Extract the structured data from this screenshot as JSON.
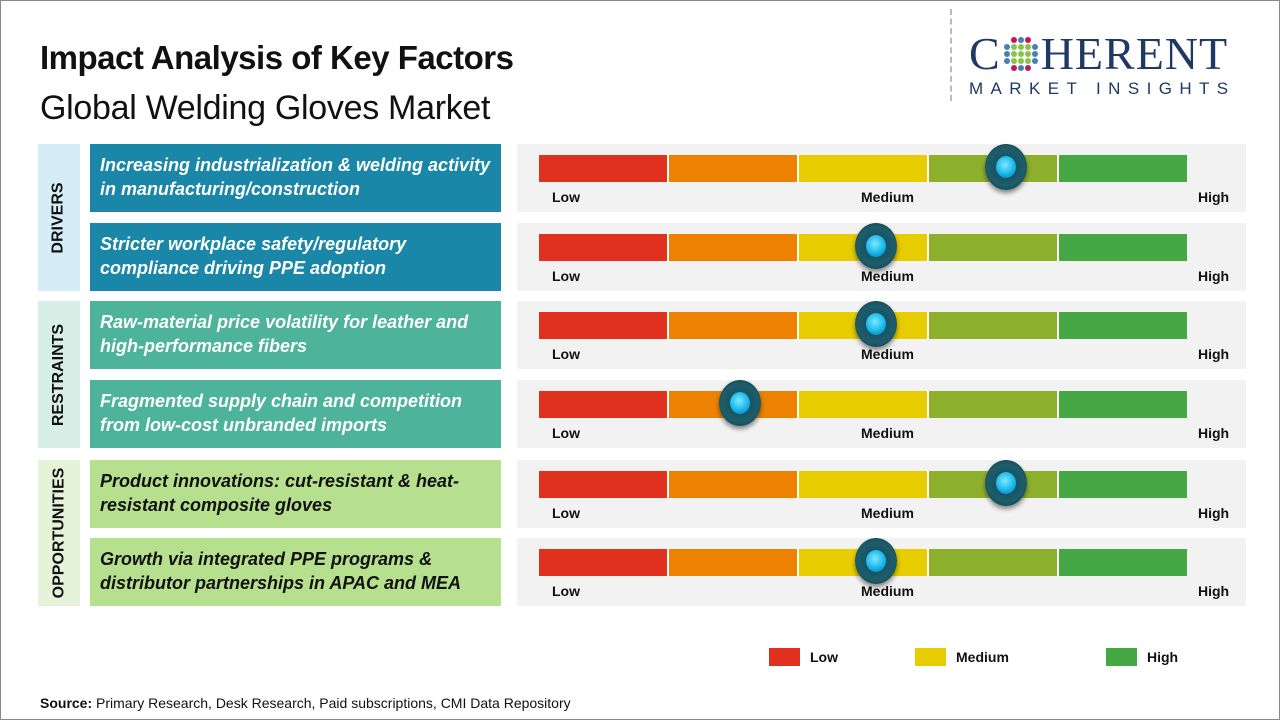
{
  "header": {
    "title": "Impact Analysis of Key Factors",
    "subtitle": "Global Welding Gloves Market"
  },
  "logo": {
    "main": "COHERENT",
    "sub": "MARKET INSIGHTS"
  },
  "colors": {
    "low": "#e0301e",
    "low_med": "#ec8200",
    "medium": "#e6cc00",
    "med_high": "#8db02c",
    "high": "#45a845",
    "drivers": "#1a87a8",
    "restraints": "#4db39a",
    "opportunities": "#b6e08d"
  },
  "chart_data": {
    "type": "gauge",
    "scale_labels": [
      "Low",
      "Medium",
      "High"
    ],
    "range": [
      0,
      1
    ],
    "categories": [
      {
        "name": "DRIVERS",
        "factors": [
          {
            "text": "Increasing industrialization & welding activity in manufacturing/construction",
            "impact": 0.72
          },
          {
            "text": "Stricter workplace safety/regulatory compliance driving PPE adoption",
            "impact": 0.52
          }
        ]
      },
      {
        "name": "RESTRAINTS",
        "factors": [
          {
            "text": "Raw-material price volatility for leather and high-performance fibers",
            "impact": 0.52
          },
          {
            "text": "Fragmented supply chain and competition from low-cost unbranded imports",
            "impact": 0.31
          }
        ]
      },
      {
        "name": "OPPORTUNITIES",
        "factors": [
          {
            "text": "Product innovations: cut-resistant & heat-resistant composite gloves",
            "impact": 0.72
          },
          {
            "text": "Growth via integrated PPE programs & distributor partnerships in APAC and MEA",
            "impact": 0.52
          }
        ]
      }
    ],
    "legend": [
      "Low",
      "Medium",
      "High"
    ]
  },
  "source": {
    "label": "Source:",
    "text": " Primary Research, Desk Research, Paid subscriptions, CMI Data Repository"
  }
}
